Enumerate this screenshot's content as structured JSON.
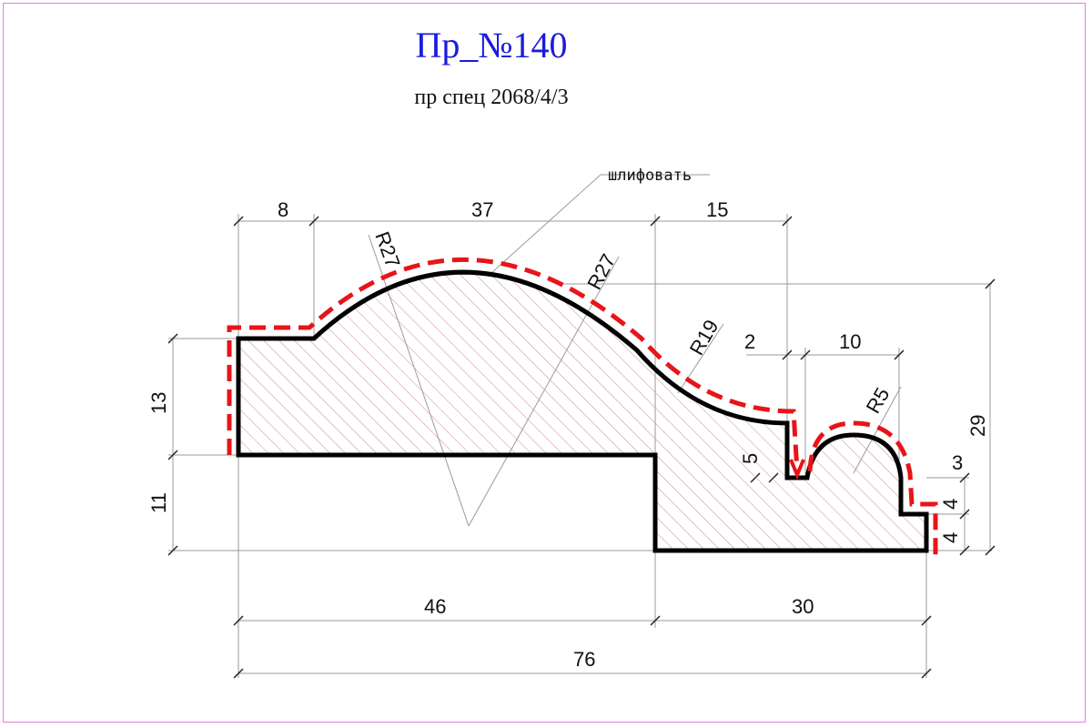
{
  "title": "Пр_№140",
  "subtitle": "пр спец 2068/4/3",
  "note": "шлифовать",
  "dims": {
    "top_8": "8",
    "top_37": "37",
    "top_15": "15",
    "top_2": "2",
    "top_10": "10",
    "left_13": "13",
    "left_11": "11",
    "right_29": "29",
    "right_3": "3",
    "right_4a": "4",
    "right_4b": "4",
    "inner_5": "5",
    "bottom_46": "46",
    "bottom_30": "30",
    "bottom_76": "76"
  },
  "radii": {
    "r27_left": "R27",
    "r27_right": "R27",
    "r19": "R19",
    "r5": "R5"
  },
  "colors": {
    "title": "#1a1adf",
    "sanding_line": "#e8141a",
    "profile": "#000000",
    "hatch": "#c98a8a",
    "frame": "#e27ee2"
  }
}
